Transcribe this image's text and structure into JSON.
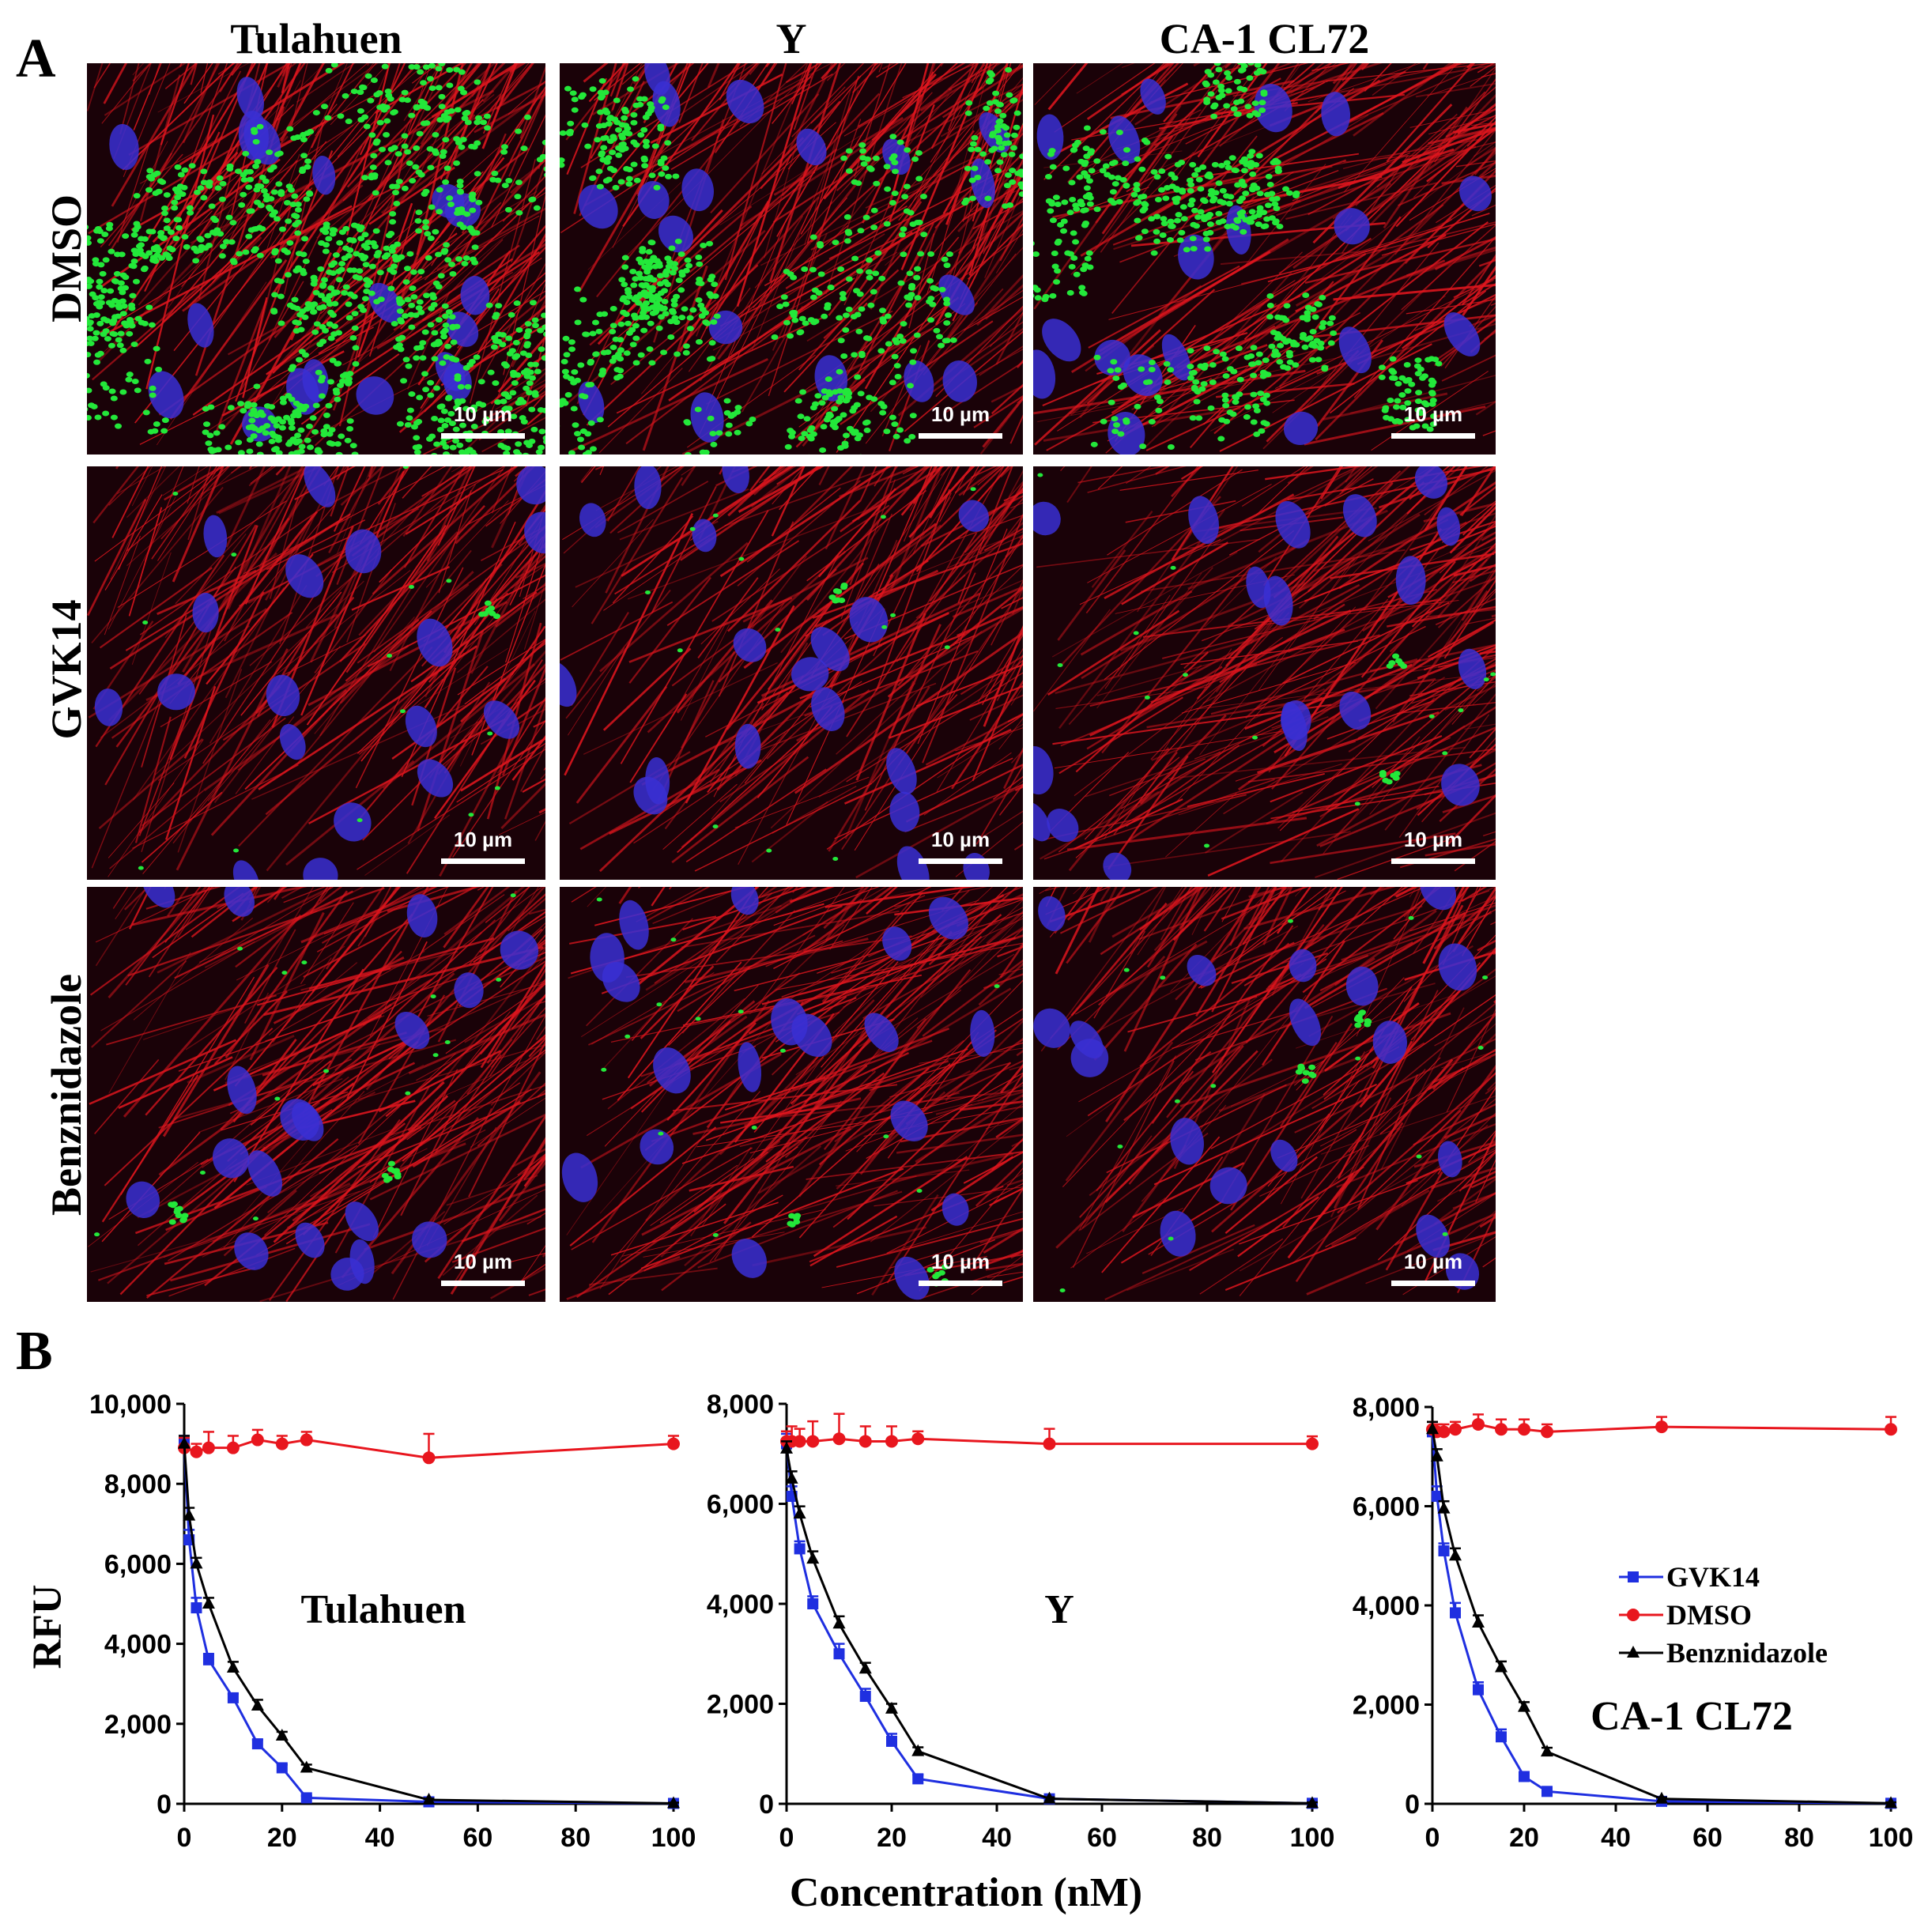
{
  "panel_a": {
    "letter": "A",
    "columns": [
      "Tulahuen",
      "Y",
      "CA-1 CL72"
    ],
    "rows": [
      "DMSO",
      "GVK14",
      "Benznidazole"
    ],
    "scale_bar_label": "10 µm",
    "image_description_colors": {
      "actin": "#e0161e",
      "nuclei": "#3a2fd4",
      "parasites": "#23e83a",
      "background": "#1a0208"
    }
  },
  "panel_b": {
    "letter": "B",
    "xlabel": "Concentration (nM)",
    "ylabel": "RFU",
    "colors": {
      "GVK14": "#1f2fe0",
      "DMSO": "#e8161e",
      "Benznidazole": "#000000"
    }
  },
  "chart_data": [
    {
      "type": "line",
      "title": "Tulahuen",
      "xlabel": "Concentration (nM)",
      "ylabel": "RFU",
      "xlim": [
        0,
        100
      ],
      "ylim": [
        0,
        10000
      ],
      "xticks": [
        "0",
        "20",
        "40",
        "60",
        "80",
        "100"
      ],
      "yticks": [
        "0",
        "2,000",
        "4,000",
        "6,000",
        "8,000",
        "10,000"
      ],
      "legend": "none",
      "series": [
        {
          "name": "GVK14",
          "marker": "square",
          "color": "#1f2fe0",
          "x": [
            0,
            1,
            2.5,
            5,
            10,
            15,
            20,
            25,
            50,
            100
          ],
          "y": [
            9000,
            6600,
            4900,
            3600,
            2650,
            1500,
            900,
            150,
            50,
            10
          ],
          "err": [
            200,
            250,
            250,
            150,
            100,
            100,
            80,
            50,
            30,
            20
          ]
        },
        {
          "name": "DMSO",
          "marker": "circle",
          "color": "#e8161e",
          "x": [
            0,
            2.5,
            5,
            10,
            15,
            20,
            25,
            50,
            100
          ],
          "y": [
            8900,
            8800,
            8900,
            8900,
            9100,
            9000,
            9100,
            8650,
            9000
          ],
          "err": [
            250,
            200,
            400,
            300,
            250,
            200,
            200,
            600,
            200
          ]
        },
        {
          "name": "Benznidazole",
          "marker": "triangle",
          "color": "#000000",
          "x": [
            0,
            1,
            2.5,
            5,
            10,
            15,
            20,
            25,
            50,
            100
          ],
          "y": [
            9000,
            7200,
            6000,
            5000,
            3400,
            2450,
            1700,
            900,
            100,
            10
          ],
          "err": [
            200,
            200,
            150,
            150,
            150,
            150,
            100,
            80,
            30,
            20
          ]
        }
      ]
    },
    {
      "type": "line",
      "title": "Y",
      "xlabel": "Concentration (nM)",
      "ylabel": "RFU",
      "xlim": [
        0,
        100
      ],
      "ylim": [
        0,
        8000
      ],
      "xticks": [
        "0",
        "20",
        "40",
        "60",
        "80",
        "100"
      ],
      "yticks": [
        "0",
        "2,000",
        "4,000",
        "6,000",
        "8,000"
      ],
      "legend": "none",
      "series": [
        {
          "name": "GVK14",
          "marker": "square",
          "color": "#1f2fe0",
          "x": [
            0,
            1,
            2.5,
            5,
            10,
            15,
            20,
            25,
            50,
            100
          ],
          "y": [
            7200,
            6150,
            5100,
            4000,
            3000,
            2150,
            1250,
            500,
            100,
            10
          ],
          "err": [
            200,
            200,
            150,
            150,
            200,
            150,
            150,
            80,
            40,
            20
          ]
        },
        {
          "name": "DMSO",
          "marker": "circle",
          "color": "#e8161e",
          "x": [
            0,
            1,
            2.5,
            5,
            10,
            15,
            20,
            25,
            50,
            100
          ],
          "y": [
            7250,
            7250,
            7250,
            7250,
            7300,
            7250,
            7250,
            7300,
            7200,
            7200
          ],
          "err": [
            200,
            300,
            250,
            400,
            500,
            300,
            300,
            150,
            300,
            150
          ]
        },
        {
          "name": "Benznidazole",
          "marker": "triangle",
          "color": "#000000",
          "x": [
            0,
            1,
            2.5,
            5,
            10,
            15,
            20,
            25,
            50,
            100
          ],
          "y": [
            7100,
            6500,
            5800,
            4900,
            3600,
            2700,
            1900,
            1050,
            100,
            10
          ],
          "err": [
            150,
            150,
            150,
            150,
            150,
            120,
            100,
            80,
            30,
            20
          ]
        }
      ]
    },
    {
      "type": "line",
      "title": "CA-1 CL72",
      "xlabel": "Concentration (nM)",
      "ylabel": "RFU",
      "xlim": [
        0,
        100
      ],
      "ylim": [
        0,
        8000
      ],
      "xticks": [
        "0",
        "20",
        "40",
        "60",
        "80",
        "100"
      ],
      "yticks": [
        "0",
        "2,000",
        "4,000",
        "6,000",
        "8,000"
      ],
      "legend": "right",
      "series": [
        {
          "name": "GVK14",
          "marker": "square",
          "color": "#1f2fe0",
          "x": [
            0,
            1,
            2.5,
            5,
            10,
            15,
            20,
            25,
            50,
            100
          ],
          "y": [
            7500,
            6200,
            5100,
            3850,
            2300,
            1350,
            550,
            250,
            50,
            10
          ],
          "err": [
            200,
            200,
            150,
            200,
            150,
            150,
            80,
            50,
            30,
            20
          ]
        },
        {
          "name": "DMSO",
          "marker": "circle",
          "color": "#e8161e",
          "x": [
            0,
            1,
            2.5,
            5,
            10,
            15,
            20,
            25,
            50,
            100
          ],
          "y": [
            7550,
            7500,
            7500,
            7550,
            7650,
            7550,
            7550,
            7500,
            7600,
            7550
          ],
          "err": [
            150,
            150,
            150,
            150,
            200,
            200,
            200,
            150,
            200,
            250
          ]
        },
        {
          "name": "Benznidazole",
          "marker": "triangle",
          "color": "#000000",
          "x": [
            0,
            1,
            2.5,
            5,
            10,
            15,
            20,
            25,
            50,
            100
          ],
          "y": [
            7550,
            7000,
            5950,
            5000,
            3650,
            2750,
            1950,
            1050,
            100,
            10
          ],
          "err": [
            150,
            150,
            150,
            150,
            150,
            120,
            100,
            80,
            30,
            20
          ]
        }
      ]
    }
  ]
}
